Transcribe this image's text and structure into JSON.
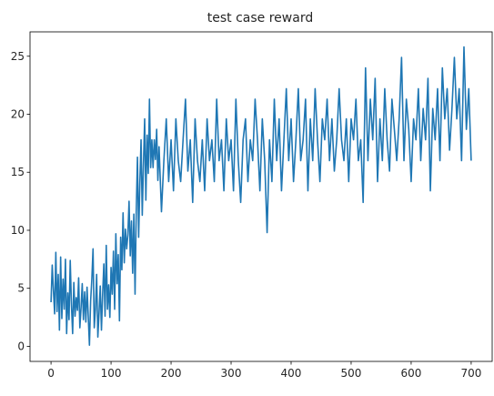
{
  "chart_data": {
    "type": "line",
    "title": "test case reward",
    "xlabel": "",
    "ylabel": "",
    "xlim": [
      -35,
      735
    ],
    "ylim": [
      -1.3,
      27.1
    ],
    "xticks": [
      0,
      100,
      200,
      300,
      400,
      500,
      600,
      700
    ],
    "yticks": [
      0,
      5,
      10,
      15,
      20,
      25
    ],
    "grid": false,
    "legend": "none",
    "color": "#1f77b4",
    "series": [
      {
        "points": [
          [
            0,
            3.8
          ],
          [
            2,
            7.0
          ],
          [
            4,
            4.8
          ],
          [
            6,
            2.8
          ],
          [
            8,
            8.1
          ],
          [
            10,
            3.0
          ],
          [
            12,
            6.2
          ],
          [
            14,
            1.4
          ],
          [
            16,
            7.7
          ],
          [
            18,
            2.4
          ],
          [
            20,
            5.8
          ],
          [
            22,
            3.2
          ],
          [
            24,
            7.5
          ],
          [
            26,
            1.1
          ],
          [
            28,
            4.6
          ],
          [
            30,
            2.3
          ],
          [
            32,
            7.4
          ],
          [
            34,
            3.6
          ],
          [
            36,
            1.1
          ],
          [
            38,
            5.5
          ],
          [
            40,
            2.6
          ],
          [
            42,
            4.2
          ],
          [
            44,
            3.1
          ],
          [
            46,
            5.9
          ],
          [
            48,
            1.6
          ],
          [
            50,
            3.3
          ],
          [
            52,
            5.4
          ],
          [
            54,
            2.3
          ],
          [
            56,
            4.7
          ],
          [
            58,
            2.1
          ],
          [
            60,
            5.1
          ],
          [
            62,
            2.6
          ],
          [
            64,
            0.1
          ],
          [
            66,
            3.9
          ],
          [
            68,
            5.8
          ],
          [
            70,
            8.4
          ],
          [
            72,
            1.6
          ],
          [
            74,
            3.2
          ],
          [
            76,
            6.2
          ],
          [
            78,
            0.8
          ],
          [
            80,
            2.9
          ],
          [
            82,
            5.2
          ],
          [
            84,
            1.4
          ],
          [
            86,
            4.5
          ],
          [
            88,
            7.1
          ],
          [
            90,
            2.6
          ],
          [
            92,
            8.7
          ],
          [
            94,
            3.2
          ],
          [
            96,
            5.3
          ],
          [
            98,
            2.5
          ],
          [
            100,
            6.8
          ],
          [
            102,
            4.5
          ],
          [
            104,
            8.2
          ],
          [
            106,
            3.2
          ],
          [
            108,
            9.7
          ],
          [
            110,
            5.4
          ],
          [
            112,
            7.9
          ],
          [
            114,
            2.2
          ],
          [
            116,
            9.4
          ],
          [
            118,
            6.6
          ],
          [
            120,
            11.5
          ],
          [
            122,
            7.2
          ],
          [
            124,
            10.1
          ],
          [
            126,
            8.4
          ],
          [
            128,
            9.6
          ],
          [
            130,
            12.5
          ],
          [
            132,
            7.8
          ],
          [
            134,
            10.8
          ],
          [
            136,
            6.3
          ],
          [
            138,
            11.4
          ],
          [
            140,
            4.5
          ],
          [
            142,
            11.6
          ],
          [
            144,
            16.3
          ],
          [
            146,
            9.4
          ],
          [
            148,
            14.1
          ],
          [
            150,
            17.8
          ],
          [
            152,
            11.3
          ],
          [
            154,
            15.7
          ],
          [
            156,
            19.6
          ],
          [
            158,
            12.6
          ],
          [
            160,
            18.2
          ],
          [
            162,
            14.9
          ],
          [
            164,
            21.3
          ],
          [
            166,
            15.4
          ],
          [
            168,
            17.8
          ],
          [
            170,
            15.4
          ],
          [
            172,
            17.8
          ],
          [
            174,
            16.1
          ],
          [
            176,
            18.7
          ],
          [
            178,
            14.3
          ],
          [
            180,
            17.2
          ],
          [
            184,
            11.6
          ],
          [
            188,
            16.0
          ],
          [
            192,
            19.6
          ],
          [
            196,
            14.2
          ],
          [
            200,
            17.8
          ],
          [
            204,
            13.4
          ],
          [
            208,
            19.6
          ],
          [
            212,
            16.0
          ],
          [
            216,
            14.2
          ],
          [
            220,
            17.8
          ],
          [
            224,
            21.3
          ],
          [
            228,
            15.1
          ],
          [
            232,
            17.8
          ],
          [
            236,
            12.4
          ],
          [
            240,
            19.6
          ],
          [
            244,
            16.0
          ],
          [
            248,
            14.2
          ],
          [
            252,
            17.8
          ],
          [
            256,
            13.4
          ],
          [
            260,
            19.6
          ],
          [
            264,
            16.0
          ],
          [
            268,
            17.8
          ],
          [
            272,
            14.2
          ],
          [
            276,
            21.3
          ],
          [
            280,
            16.0
          ],
          [
            284,
            17.8
          ],
          [
            288,
            13.4
          ],
          [
            292,
            19.6
          ],
          [
            296,
            16.0
          ],
          [
            300,
            17.8
          ],
          [
            304,
            13.4
          ],
          [
            308,
            21.3
          ],
          [
            312,
            16.0
          ],
          [
            316,
            12.4
          ],
          [
            320,
            17.8
          ],
          [
            324,
            19.6
          ],
          [
            328,
            14.2
          ],
          [
            332,
            17.8
          ],
          [
            336,
            16.0
          ],
          [
            340,
            21.3
          ],
          [
            344,
            17.8
          ],
          [
            348,
            13.4
          ],
          [
            352,
            19.6
          ],
          [
            356,
            16.0
          ],
          [
            360,
            9.8
          ],
          [
            364,
            17.8
          ],
          [
            368,
            14.2
          ],
          [
            372,
            21.3
          ],
          [
            376,
            16.0
          ],
          [
            380,
            19.6
          ],
          [
            384,
            13.4
          ],
          [
            388,
            17.8
          ],
          [
            392,
            22.2
          ],
          [
            396,
            16.0
          ],
          [
            400,
            19.6
          ],
          [
            404,
            14.2
          ],
          [
            408,
            17.8
          ],
          [
            412,
            22.2
          ],
          [
            416,
            16.0
          ],
          [
            420,
            17.8
          ],
          [
            424,
            21.3
          ],
          [
            428,
            13.4
          ],
          [
            432,
            19.6
          ],
          [
            436,
            16.0
          ],
          [
            440,
            22.2
          ],
          [
            444,
            17.8
          ],
          [
            448,
            14.2
          ],
          [
            452,
            19.6
          ],
          [
            456,
            17.8
          ],
          [
            460,
            21.3
          ],
          [
            464,
            16.0
          ],
          [
            468,
            19.6
          ],
          [
            472,
            15.1
          ],
          [
            476,
            17.8
          ],
          [
            480,
            22.2
          ],
          [
            484,
            17.8
          ],
          [
            488,
            16.0
          ],
          [
            492,
            19.6
          ],
          [
            496,
            14.2
          ],
          [
            500,
            19.6
          ],
          [
            504,
            17.8
          ],
          [
            508,
            21.3
          ],
          [
            512,
            16.0
          ],
          [
            516,
            17.8
          ],
          [
            520,
            12.4
          ],
          [
            524,
            24.0
          ],
          [
            528,
            16.0
          ],
          [
            532,
            21.3
          ],
          [
            536,
            17.8
          ],
          [
            540,
            23.1
          ],
          [
            544,
            14.2
          ],
          [
            548,
            19.6
          ],
          [
            552,
            16.0
          ],
          [
            556,
            22.2
          ],
          [
            560,
            17.8
          ],
          [
            564,
            15.1
          ],
          [
            568,
            21.3
          ],
          [
            572,
            18.7
          ],
          [
            576,
            16.0
          ],
          [
            580,
            19.6
          ],
          [
            584,
            24.9
          ],
          [
            588,
            16.0
          ],
          [
            592,
            21.3
          ],
          [
            596,
            18.7
          ],
          [
            600,
            14.2
          ],
          [
            604,
            19.6
          ],
          [
            608,
            17.8
          ],
          [
            612,
            22.2
          ],
          [
            616,
            16.0
          ],
          [
            620,
            20.5
          ],
          [
            624,
            17.8
          ],
          [
            628,
            23.1
          ],
          [
            632,
            13.4
          ],
          [
            636,
            20.5
          ],
          [
            640,
            17.8
          ],
          [
            644,
            22.2
          ],
          [
            648,
            16.0
          ],
          [
            652,
            24.0
          ],
          [
            656,
            19.6
          ],
          [
            660,
            22.2
          ],
          [
            664,
            16.9
          ],
          [
            668,
            20.5
          ],
          [
            672,
            24.9
          ],
          [
            676,
            19.6
          ],
          [
            680,
            22.2
          ],
          [
            684,
            16.0
          ],
          [
            688,
            25.8
          ],
          [
            692,
            18.7
          ],
          [
            696,
            22.2
          ],
          [
            700,
            16.0
          ]
        ]
      }
    ]
  }
}
